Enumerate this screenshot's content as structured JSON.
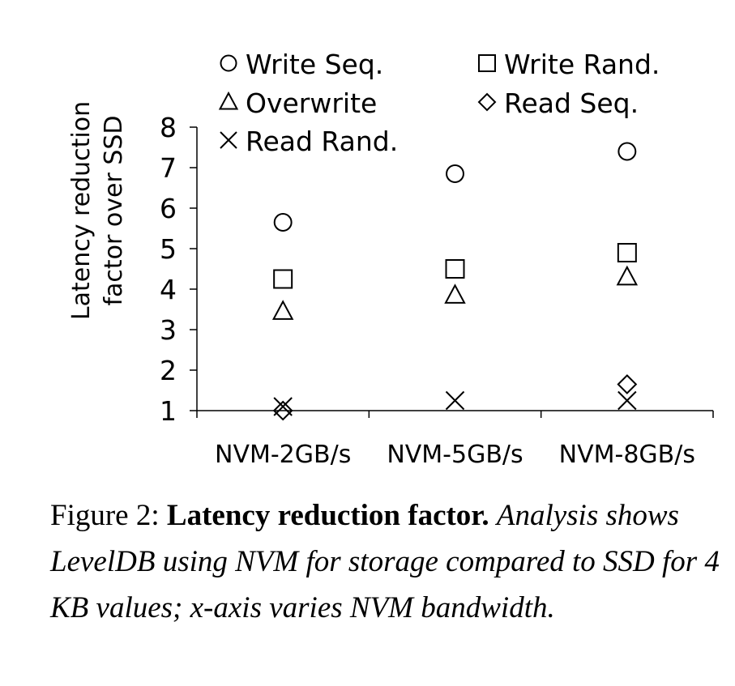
{
  "chart_data": {
    "type": "scatter",
    "categories": [
      "NVM-2GB/s",
      "NVM-5GB/s",
      "NVM-8GB/s"
    ],
    "ylabel": "Latency reduction factor over SSD",
    "ylabel_lines": [
      "Latency reduction",
      "factor over SSD"
    ],
    "xlabel": "",
    "ylim": [
      1,
      8
    ],
    "yticks": [
      "1",
      "2",
      "3",
      "4",
      "5",
      "6",
      "7",
      "8"
    ],
    "grid": false,
    "legend_position": "top",
    "series": [
      {
        "name": "Write Seq.",
        "marker": "circle",
        "values": [
          5.65,
          6.85,
          7.4
        ]
      },
      {
        "name": "Write Rand.",
        "marker": "square",
        "values": [
          4.25,
          4.5,
          4.9
        ]
      },
      {
        "name": "Overwrite",
        "marker": "triangle",
        "values": [
          3.45,
          3.85,
          4.3
        ]
      },
      {
        "name": "Read Seq.",
        "marker": "diamond",
        "values": [
          1.0,
          null,
          1.65
        ]
      },
      {
        "name": "Read Rand.",
        "marker": "x",
        "values": [
          1.1,
          1.25,
          1.25
        ]
      }
    ]
  },
  "caption": {
    "label": "Figure 2:",
    "title": "Latency reduction factor.",
    "body": "Analysis shows LevelDB using NVM for storage compared to SSD for 4 KB values; x-axis varies NVM bandwidth."
  }
}
